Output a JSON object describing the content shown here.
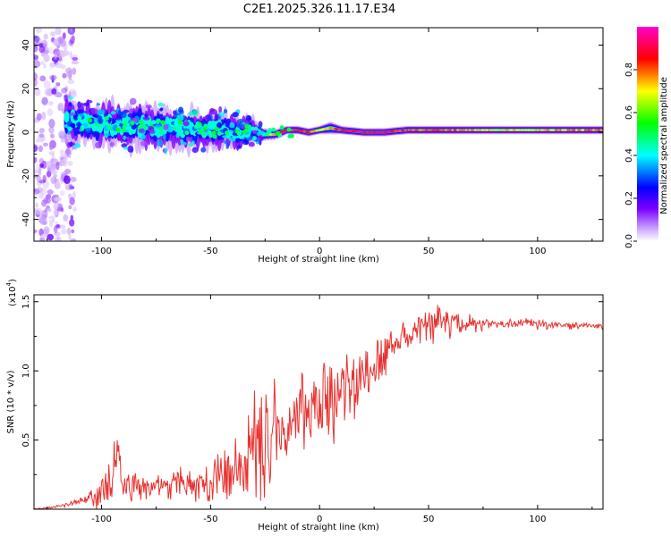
{
  "title": "C2E1.2025.326.11.17.E34",
  "chart_data": [
    {
      "type": "heatmap",
      "name": "spectrogram",
      "xlabel": "Height of straight line (km)",
      "ylabel": "Frequency (Hz)",
      "xlim": [
        -131,
        130
      ],
      "ylim": [
        -50,
        48
      ],
      "xticks": [
        -100,
        -50,
        0,
        50,
        100
      ],
      "yticks": [
        -40,
        -20,
        0,
        20,
        40
      ],
      "colorbar": {
        "label": "Normalized spectral amplitude",
        "range": [
          0.0,
          1.0
        ],
        "ticks": [
          "0.0",
          "0.2",
          "0.4",
          "0.6",
          "0.8"
        ],
        "tick_values": [
          0.0,
          0.2,
          0.4,
          0.6,
          0.8
        ],
        "colors": [
          "#ffffff",
          "#c9a3ff",
          "#7d00ff",
          "#0000ff",
          "#00ffff",
          "#00ff00",
          "#ffff00",
          "#ff0000",
          "#ff00c8"
        ]
      },
      "ridge": {
        "x": [
          -116,
          -100,
          -85,
          -70,
          -55,
          -40,
          -30,
          -25,
          -20,
          -15,
          -10,
          -5,
          0,
          5,
          10,
          20,
          30,
          40,
          60,
          80,
          100,
          130
        ],
        "center_freq": [
          5,
          4,
          3,
          2,
          1,
          1,
          0,
          -1,
          -1,
          1,
          1,
          0,
          1,
          2,
          1,
          0,
          0,
          1,
          1,
          1,
          1,
          1
        ],
        "half_width": [
          9,
          10,
          10,
          9,
          8,
          8,
          6,
          3,
          2.5,
          2,
          2,
          2,
          2,
          3,
          2,
          2,
          2,
          2,
          2,
          2,
          2,
          2
        ],
        "peak_amplitude": [
          0.35,
          0.45,
          0.45,
          0.45,
          0.4,
          0.35,
          0.4,
          0.5,
          0.9,
          0.95,
          0.9,
          0.9,
          0.7,
          0.75,
          0.9,
          0.95,
          0.95,
          0.9,
          0.85,
          0.75,
          0.75,
          0.85
        ]
      },
      "noise_band_x": [
        -131,
        -116
      ]
    },
    {
      "type": "line",
      "name": "snr",
      "xlabel": "Height of straight line (km)",
      "ylabel": "SNR (10 * v/v)",
      "scale_label": "(x10",
      "scale_exponent": "4",
      "xlim": [
        -131,
        130
      ],
      "ylim": [
        0,
        1.55
      ],
      "xticks": [
        -100,
        -50,
        0,
        50,
        100
      ],
      "yticks": [
        0.5,
        1.0,
        1.5
      ],
      "ytick_labels": [
        "0.5",
        "1.0",
        "1.5"
      ],
      "color": "#e8322f",
      "envelope": {
        "x": [
          -131,
          -120,
          -110,
          -105,
          -100,
          -95,
          -90,
          -80,
          -70,
          -60,
          -50,
          -45,
          -40,
          -35,
          -30,
          -28,
          -25,
          -22,
          -20,
          -15,
          -10,
          -5,
          0,
          5,
          10,
          15,
          20,
          25,
          30,
          35,
          40,
          45,
          50,
          55,
          60,
          70,
          80,
          90,
          100,
          110,
          120,
          130
        ],
        "mean": [
          0.0,
          0.02,
          0.05,
          0.08,
          0.12,
          0.2,
          0.2,
          0.15,
          0.18,
          0.18,
          0.2,
          0.25,
          0.25,
          0.32,
          0.35,
          0.4,
          0.45,
          0.55,
          0.6,
          0.65,
          0.7,
          0.72,
          0.75,
          0.8,
          0.82,
          0.9,
          0.95,
          1.0,
          1.1,
          1.2,
          1.25,
          1.3,
          1.33,
          1.35,
          1.35,
          1.34,
          1.34,
          1.34,
          1.34,
          1.33,
          1.33,
          1.32
        ],
        "spread": [
          0.005,
          0.01,
          0.03,
          0.06,
          0.12,
          0.22,
          0.14,
          0.1,
          0.1,
          0.12,
          0.15,
          0.18,
          0.22,
          0.3,
          0.45,
          0.45,
          0.45,
          0.45,
          0.3,
          0.3,
          0.3,
          0.28,
          0.28,
          0.28,
          0.28,
          0.25,
          0.22,
          0.2,
          0.16,
          0.12,
          0.1,
          0.1,
          0.12,
          0.15,
          0.15,
          0.06,
          0.04,
          0.04,
          0.04,
          0.03,
          0.03,
          0.03
        ]
      }
    }
  ]
}
